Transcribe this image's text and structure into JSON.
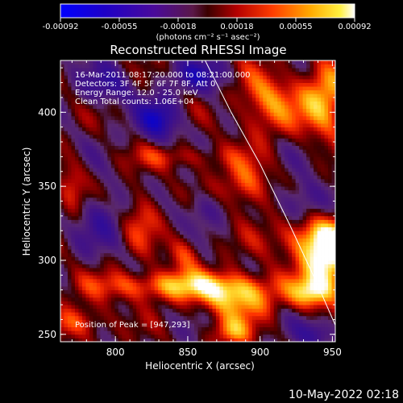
{
  "chart_data": {
    "type": "heatmap",
    "title": "Reconstructed RHESSI Image",
    "xlabel": "Heliocentric X (arcsec)",
    "ylabel": "Heliocentric Y (arcsec)",
    "xlim": [
      762,
      952
    ],
    "ylim": [
      245,
      435
    ],
    "xticks": [
      800,
      850,
      900,
      950
    ],
    "yticks": [
      250,
      300,
      350,
      400
    ],
    "colorbar": {
      "ticks": [
        "-0.00092",
        "-0.00055",
        "-0.00018",
        "0.00018",
        "0.00055",
        "0.00092"
      ],
      "range": [
        -0.00092,
        0.00092
      ],
      "unit_label": "(photons cm⁻² s⁻¹ asec⁻²)"
    },
    "annotations": [
      "16-Mar-2011 08:17:20.000 to 08:21:00.000",
      "Detectors: 3F 4F 5F 6F 7F 8F, Att 0",
      "Energy Range: 12.0 - 25.0 keV",
      "Clean     Total counts: 1.06E+04"
    ],
    "peak_label": "Position of Peak = [947,293]",
    "peak": [
      947,
      293
    ],
    "limb": [
      [
        862,
        435
      ],
      [
        880,
        400
      ],
      [
        900,
        365
      ],
      [
        920,
        325
      ],
      [
        940,
        283
      ],
      [
        957,
        245
      ]
    ],
    "blobs": [
      {
        "x": 947,
        "y": 300,
        "sx": 13,
        "sy": 18,
        "a": 1.0
      },
      {
        "x": 935,
        "y": 315,
        "sx": 20,
        "sy": 10,
        "a": 0.55
      },
      {
        "x": 905,
        "y": 408,
        "sx": 15,
        "sy": 16,
        "a": 0.6
      },
      {
        "x": 945,
        "y": 408,
        "sx": 12,
        "sy": 18,
        "a": 0.75
      },
      {
        "x": 845,
        "y": 370,
        "sx": 25,
        "sy": 6,
        "a": 0.35
      },
      {
        "x": 818,
        "y": 330,
        "sx": 9,
        "sy": 13,
        "a": 0.45
      },
      {
        "x": 848,
        "y": 305,
        "sx": 8,
        "sy": 9,
        "a": 0.45
      },
      {
        "x": 890,
        "y": 350,
        "sx": 12,
        "sy": 12,
        "a": 0.55
      },
      {
        "x": 770,
        "y": 350,
        "sx": 7,
        "sy": 12,
        "a": 0.4
      },
      {
        "x": 840,
        "y": 283,
        "sx": 38,
        "sy": 7,
        "a": 0.7
      },
      {
        "x": 885,
        "y": 275,
        "sx": 18,
        "sy": 10,
        "a": 0.75
      },
      {
        "x": 775,
        "y": 258,
        "sx": 14,
        "sy": 8,
        "a": 0.5
      },
      {
        "x": 880,
        "y": 252,
        "sx": 10,
        "sy": 7,
        "a": 0.55
      },
      {
        "x": 935,
        "y": 278,
        "sx": 10,
        "sy": 7,
        "a": 0.6
      },
      {
        "x": 830,
        "y": 395,
        "sx": 10,
        "sy": 10,
        "a": -0.7
      },
      {
        "x": 860,
        "y": 425,
        "sx": 14,
        "sy": 8,
        "a": -0.5
      },
      {
        "x": 790,
        "y": 330,
        "sx": 12,
        "sy": 14,
        "a": -0.35
      },
      {
        "x": 930,
        "y": 340,
        "sx": 12,
        "sy": 10,
        "a": -0.45
      },
      {
        "x": 860,
        "y": 335,
        "sx": 12,
        "sy": 8,
        "a": -0.3
      },
      {
        "x": 940,
        "y": 250,
        "sx": 10,
        "sy": 7,
        "a": -0.4
      },
      {
        "x": 795,
        "y": 418,
        "sx": 12,
        "sy": 9,
        "a": -0.45
      }
    ]
  },
  "footer": {
    "timestamp": "10-May-2022 02:18"
  }
}
